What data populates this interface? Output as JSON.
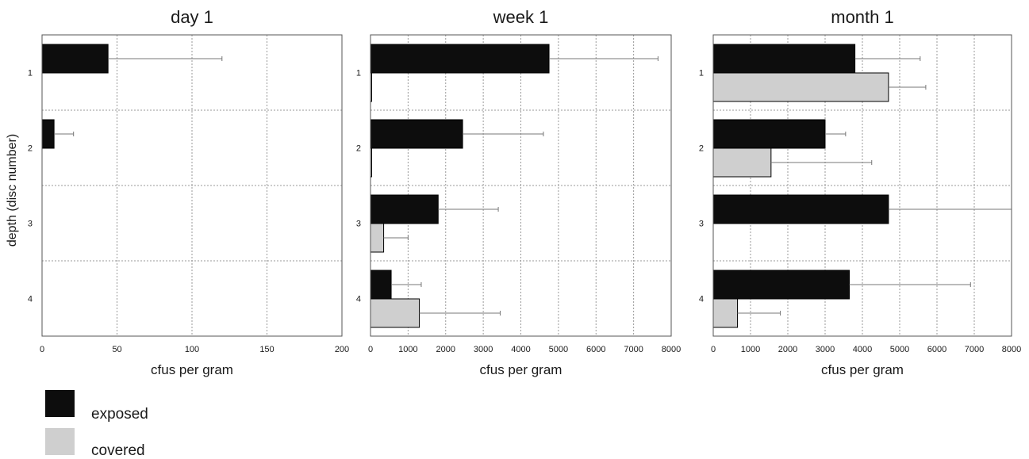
{
  "y_axis_label": "depth (disc number)",
  "legend": [
    {
      "label": "exposed",
      "color": "#0d0d0d"
    },
    {
      "label": "covered",
      "color": "#cfcfcf"
    }
  ],
  "chart_data": [
    {
      "type": "bar",
      "orientation": "horizontal",
      "title": "day 1",
      "xlabel": "cfus per gram",
      "xlim": [
        0,
        200
      ],
      "xticks": [
        "0",
        "50",
        "100",
        "150",
        "200"
      ],
      "categories": [
        "1",
        "2",
        "3",
        "4"
      ],
      "grid": true,
      "series": [
        {
          "name": "exposed",
          "color": "#0d0d0d",
          "values": [
            44,
            8,
            0,
            0
          ],
          "errors": [
            76,
            13,
            0,
            0
          ]
        },
        {
          "name": "covered",
          "color": "#cfcfcf",
          "values": [
            0,
            0,
            0,
            0
          ],
          "errors": [
            0,
            0,
            0,
            0
          ]
        }
      ]
    },
    {
      "type": "bar",
      "orientation": "horizontal",
      "title": "week 1",
      "xlabel": "cfus per gram",
      "xlim": [
        0,
        8000
      ],
      "xticks": [
        "0",
        "1000",
        "2000",
        "3000",
        "4000",
        "5000",
        "6000",
        "7000",
        "8000"
      ],
      "categories": [
        "1",
        "2",
        "3",
        "4"
      ],
      "grid": true,
      "series": [
        {
          "name": "exposed",
          "color": "#0d0d0d",
          "values": [
            4750,
            2450,
            1800,
            550
          ],
          "errors": [
            2900,
            2150,
            1600,
            800
          ]
        },
        {
          "name": "covered",
          "color": "#cfcfcf",
          "values": [
            30,
            20,
            350,
            1300
          ],
          "errors": [
            0,
            0,
            650,
            2150
          ]
        }
      ]
    },
    {
      "type": "bar",
      "orientation": "horizontal",
      "title": "month 1",
      "xlabel": "cfus per gram",
      "xlim": [
        0,
        8000
      ],
      "xticks": [
        "0",
        "1000",
        "2000",
        "3000",
        "4000",
        "5000",
        "6000",
        "7000",
        "8000"
      ],
      "categories": [
        "1",
        "2",
        "3",
        "4"
      ],
      "grid": true,
      "series": [
        {
          "name": "exposed",
          "color": "#0d0d0d",
          "values": [
            3800,
            3000,
            4700,
            3650
          ],
          "errors": [
            1750,
            550,
            3300,
            3250
          ]
        },
        {
          "name": "covered",
          "color": "#cfcfcf",
          "values": [
            4700,
            1550,
            0,
            650
          ],
          "errors": [
            1000,
            2700,
            0,
            1150
          ]
        }
      ]
    }
  ]
}
